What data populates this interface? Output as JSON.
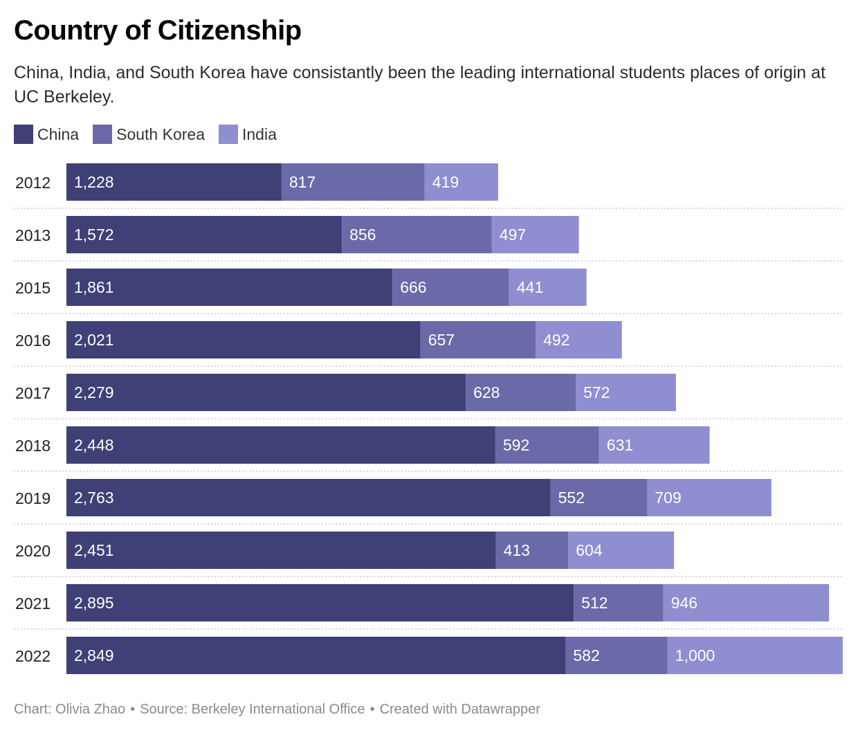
{
  "title": "Country of Citizenship",
  "subtitle": "China, India, and South Korea have consistantly been the leading international students places of origin at UC Berkeley.",
  "legend": [
    {
      "label": "China",
      "color": "#3e4076"
    },
    {
      "label": "South Korea",
      "color": "#6a6aa8"
    },
    {
      "label": "India",
      "color": "#8e8ed0"
    }
  ],
  "chart_data": {
    "type": "bar",
    "orientation": "horizontal",
    "stacked": true,
    "categories": [
      "2012",
      "2013",
      "2015",
      "2016",
      "2017",
      "2018",
      "2019",
      "2020",
      "2021",
      "2022"
    ],
    "series": [
      {
        "name": "China",
        "color": "#3e4076",
        "values": [
          1228,
          1572,
          1861,
          2021,
          2279,
          2448,
          2763,
          2451,
          2895,
          2849
        ],
        "labels": [
          "1,228",
          "1,572",
          "1,861",
          "2,021",
          "2,279",
          "2,448",
          "2,763",
          "2,451",
          "2,895",
          "2,849"
        ]
      },
      {
        "name": "South Korea",
        "color": "#6a6aa8",
        "values": [
          817,
          856,
          666,
          657,
          628,
          592,
          552,
          413,
          512,
          582
        ],
        "labels": [
          "817",
          "856",
          "666",
          "657",
          "628",
          "592",
          "552",
          "413",
          "512",
          "582"
        ]
      },
      {
        "name": "India",
        "color": "#8e8ed0",
        "values": [
          419,
          497,
          441,
          492,
          572,
          631,
          709,
          604,
          946,
          1000
        ],
        "labels": [
          "419",
          "497",
          "441",
          "492",
          "572",
          "631",
          "709",
          "604",
          "946",
          "1,000"
        ]
      }
    ],
    "xlim": [
      0,
      4431
    ],
    "grid": false,
    "legend_position": "top-left"
  },
  "footer": {
    "chart_credit": "Chart: Olivia Zhao",
    "separator": "•",
    "source": "Source: Berkeley International Office",
    "created_with": "Created with Datawrapper"
  }
}
